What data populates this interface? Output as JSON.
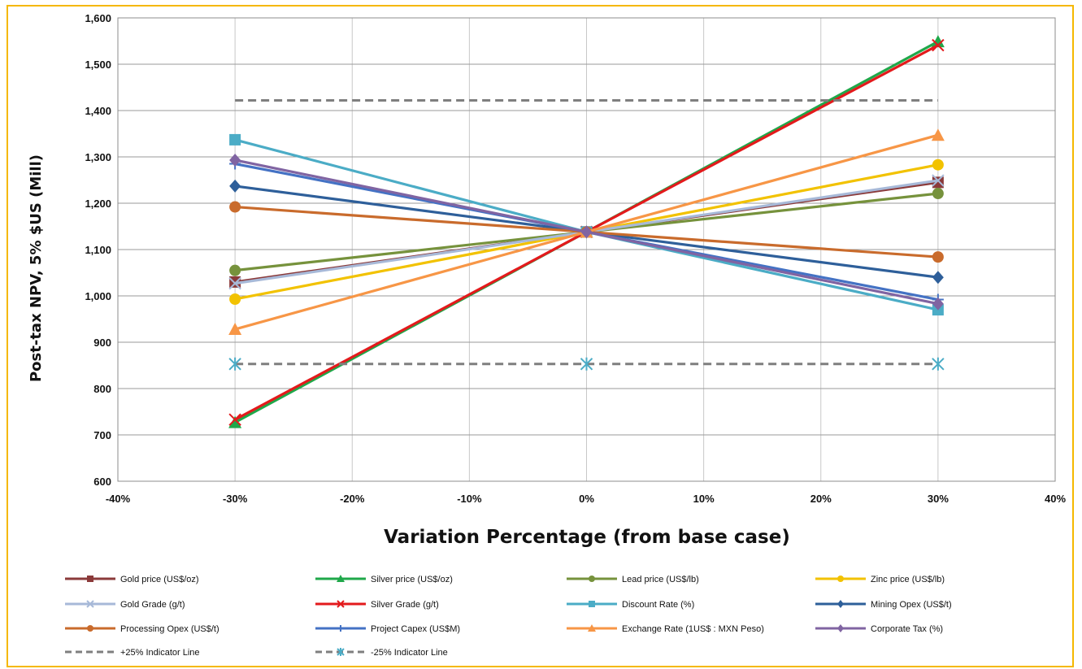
{
  "chart_data": {
    "type": "line",
    "xlabel": "Variation Percentage (from base case)",
    "ylabel": "Post-tax NPV, 5%  $US (Mill)",
    "xlim": [
      -40,
      40
    ],
    "ylim": [
      600,
      1600
    ],
    "x_ticks": [
      -40,
      -30,
      -20,
      -10,
      0,
      10,
      20,
      30,
      40
    ],
    "x_tick_labels": [
      "-40%",
      "-30%",
      "-20%",
      "-10%",
      "0%",
      "10%",
      "20%",
      "30%",
      "40%"
    ],
    "y_ticks": [
      600,
      700,
      800,
      900,
      1000,
      1100,
      1200,
      1300,
      1400,
      1500,
      1600
    ],
    "y_tick_labels": [
      "600",
      "700",
      "800",
      "900",
      "1,000",
      "1,100",
      "1,200",
      "1,300",
      "1,400",
      "1,500",
      "1,600"
    ],
    "grid": true,
    "legend_position": "bottom",
    "series": [
      {
        "name": "Gold price (US$/oz)",
        "color": "#8b3a3a",
        "marker": "square",
        "x": [
          -30,
          0,
          30
        ],
        "y": [
          1030,
          1138,
          1245
        ]
      },
      {
        "name": "Silver price (US$/oz)",
        "color": "#1fa84a",
        "marker": "triangle",
        "x": [
          -30,
          0,
          30
        ],
        "y": [
          727,
          1138,
          1549
        ]
      },
      {
        "name": "Lead price (US$/lb)",
        "color": "#76923c",
        "marker": "circle",
        "x": [
          -30,
          0,
          30
        ],
        "y": [
          1055,
          1138,
          1221
        ]
      },
      {
        "name": "Zinc price (US$/lb)",
        "color": "#f2c200",
        "marker": "circle",
        "x": [
          -30,
          0,
          30
        ],
        "y": [
          993,
          1138,
          1283
        ]
      },
      {
        "name": "Gold Grade (g/t)",
        "color": "#a7b9d8",
        "marker": "x",
        "x": [
          -30,
          0,
          30
        ],
        "y": [
          1027,
          1138,
          1249
        ]
      },
      {
        "name": "Silver Grade (g/t)",
        "color": "#e31a1c",
        "marker": "x",
        "x": [
          -30,
          0,
          30
        ],
        "y": [
          733,
          1138,
          1541
        ]
      },
      {
        "name": "Discount Rate (%)",
        "color": "#4bacc6",
        "marker": "square",
        "x": [
          -30,
          0,
          30
        ],
        "y": [
          1337,
          1138,
          970
        ]
      },
      {
        "name": "Mining Opex (US$/t)",
        "color": "#2e5f9a",
        "marker": "diamond",
        "x": [
          -30,
          0,
          30
        ],
        "y": [
          1237,
          1138,
          1040
        ]
      },
      {
        "name": "Processing Opex (US$/t)",
        "color": "#c96b2c",
        "marker": "circle",
        "x": [
          -30,
          0,
          30
        ],
        "y": [
          1192,
          1138,
          1084
        ]
      },
      {
        "name": "Project Capex (US$M)",
        "color": "#4472c4",
        "marker": "plus",
        "x": [
          -30,
          0,
          30
        ],
        "y": [
          1285,
          1138,
          992
        ]
      },
      {
        "name": "Exchange Rate (1US$ : MXN Peso)",
        "color": "#f79646",
        "marker": "triangle",
        "x": [
          -30,
          0,
          30
        ],
        "y": [
          928,
          1138,
          1347
        ]
      },
      {
        "name": "Corporate Tax (%)",
        "color": "#8064a2",
        "marker": "diamond",
        "x": [
          -30,
          0,
          30
        ],
        "y": [
          1293,
          1138,
          983
        ]
      },
      {
        "name": "+25% Indicator Line",
        "color": "#7f7f7f",
        "marker": "none",
        "dashed": true,
        "x": [
          -30,
          0,
          30
        ],
        "y": [
          1422,
          1422,
          1422
        ]
      },
      {
        "name": "-25% Indicator Line",
        "color": "#7f7f7f",
        "marker": "asterisk",
        "dashed": true,
        "marker_color": "#4bacc6",
        "x": [
          -30,
          0,
          30
        ],
        "y": [
          853,
          853,
          853
        ]
      }
    ]
  }
}
